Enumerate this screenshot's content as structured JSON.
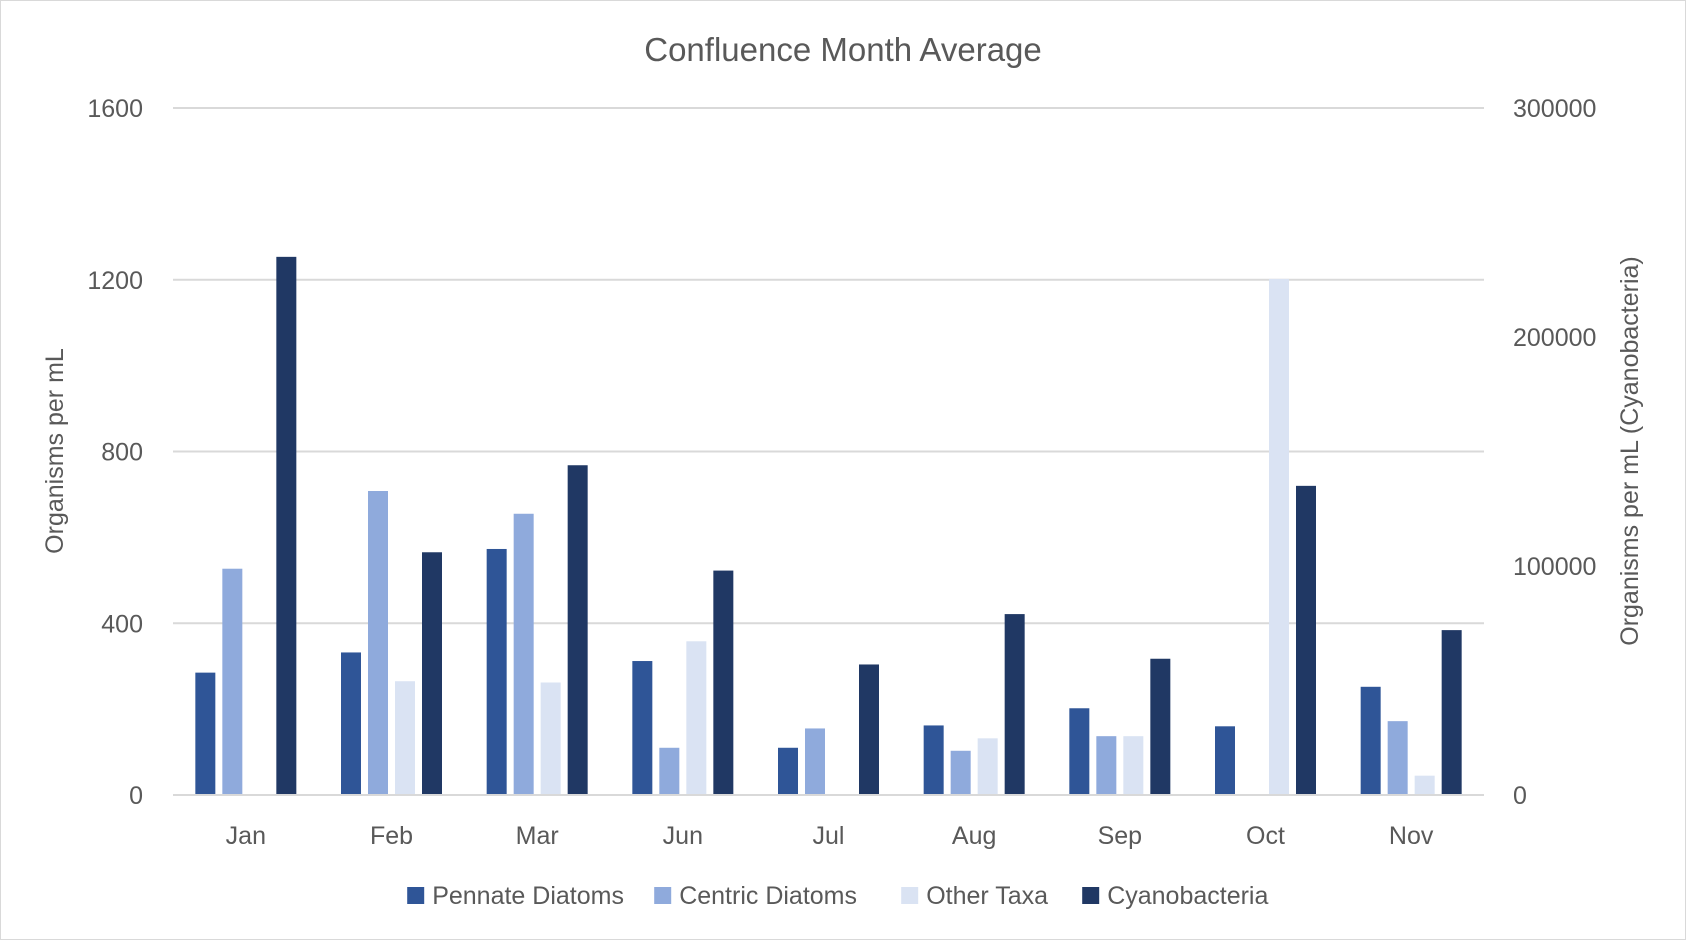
{
  "chart_data": {
    "type": "bar",
    "title": "Confluence Month Average",
    "categories": [
      "Jan",
      "Feb",
      "Mar",
      "Jun",
      "Jul",
      "Aug",
      "Sep",
      "Oct",
      "Nov"
    ],
    "y_left": {
      "label": "Organisms per mL",
      "lim": [
        0,
        1600
      ],
      "ticks": [
        0,
        400,
        800,
        1200,
        1600
      ]
    },
    "y_right": {
      "label": "Organisms per mL (Cyanobacteria)",
      "lim": [
        0,
        300000
      ],
      "ticks": [
        0,
        100000,
        200000,
        300000
      ]
    },
    "grid": true,
    "legend_position": "bottom",
    "series": [
      {
        "name": "Pennate Diatoms",
        "axis": "left",
        "color": "#2f5597",
        "values": [
          285,
          332,
          573,
          312,
          110,
          162,
          202,
          160,
          252
        ]
      },
      {
        "name": "Centric Diatoms",
        "axis": "left",
        "color": "#8faadc",
        "values": [
          527,
          708,
          655,
          110,
          155,
          103,
          137,
          0,
          172
        ]
      },
      {
        "name": "Other Taxa",
        "axis": "left",
        "color": "#dae3f3",
        "values": [
          0,
          265,
          262,
          358,
          0,
          132,
          137,
          1202,
          45
        ]
      },
      {
        "name": "Cyanobacteria",
        "axis": "right",
        "color": "#203864",
        "values": [
          235000,
          106000,
          144000,
          98000,
          57000,
          79000,
          59500,
          135000,
          72000
        ]
      }
    ]
  }
}
